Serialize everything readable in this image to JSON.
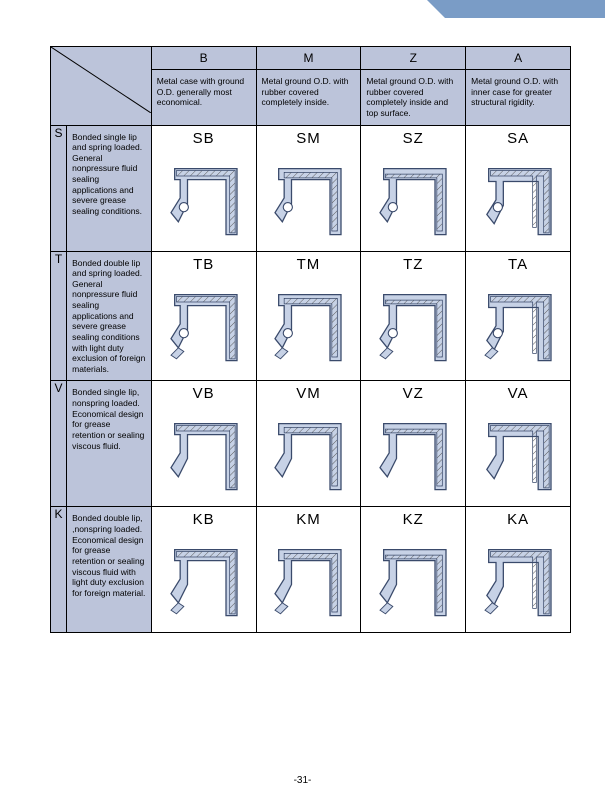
{
  "page_number": "-31-",
  "corner_tab_color": "#7a9cc6",
  "header_bg": "#bcc4da",
  "seal_fill": "#c7d2e6",
  "seal_stroke": "#3a4a6b",
  "hatch_stroke": "#555",
  "columns": [
    {
      "letter": "B",
      "desc": "Metal case with ground O.D. generally most economical."
    },
    {
      "letter": "M",
      "desc": "Metal ground O.D. with rubber covered completely inside."
    },
    {
      "letter": "Z",
      "desc": "Metal ground O.D. with rubber covered completely inside and top surface."
    },
    {
      "letter": "A",
      "desc": "Metal ground O.D. with inner case for greater structural rigidity."
    }
  ],
  "rows": [
    {
      "letter": "S",
      "desc": "Bonded single lip and spring loaded. General nonpressure fluid sealing applications and severe grease sealing conditions.",
      "spring": true,
      "double_lip": false
    },
    {
      "letter": "T",
      "desc": "Bonded double lip and spring loaded. General nonpressure fluid sealing applications and severe grease sealing conditions with light duty exclusion of foreign materials.",
      "spring": true,
      "double_lip": true
    },
    {
      "letter": "V",
      "desc": "Bonded single lip, nonspring loaded. Economical design for grease retention or sealing viscous fluid.",
      "spring": false,
      "double_lip": false
    },
    {
      "letter": "K",
      "desc": "Bonded double lip, ,nonspring loaded. Economical design for grease retention or sealing viscous fluid with light duty exclusion for foreign material.",
      "spring": false,
      "double_lip": true
    }
  ]
}
